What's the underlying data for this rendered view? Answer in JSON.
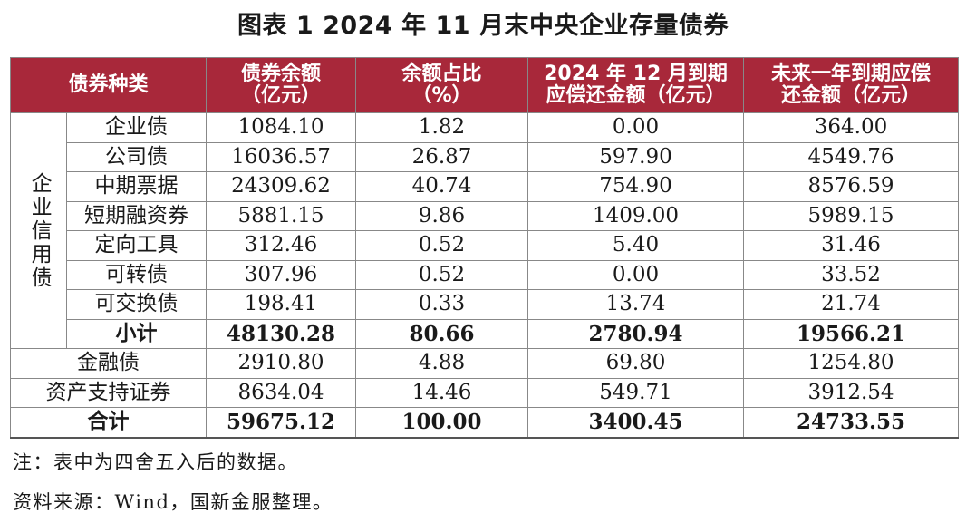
{
  "title": "图表 1  2024 年 11 月末中央企业存量债券",
  "headers": {
    "type": "债券种类",
    "balance_l1": "债券余额",
    "balance_l2": "（亿元）",
    "share_l1": "余额占比",
    "share_l2": "（%）",
    "dec_l1": "2024 年 12 月到期",
    "dec_l2": "应偿还金额（亿元）",
    "year_l1": "未来一年到期应偿",
    "year_l2": "还金额（亿元）"
  },
  "group_label": "企业信用债",
  "credit_rows": [
    {
      "name": "企业债",
      "balance": "1084.10",
      "share": "1.82",
      "dec": "0.00",
      "year": "364.00"
    },
    {
      "name": "公司债",
      "balance": "16036.57",
      "share": "26.87",
      "dec": "597.90",
      "year": "4549.76"
    },
    {
      "name": "中期票据",
      "balance": "24309.62",
      "share": "40.74",
      "dec": "754.90",
      "year": "8576.59"
    },
    {
      "name": "短期融资券",
      "balance": "5881.15",
      "share": "9.86",
      "dec": "1409.00",
      "year": "5989.15"
    },
    {
      "name": "定向工具",
      "balance": "312.46",
      "share": "0.52",
      "dec": "5.40",
      "year": "31.46"
    },
    {
      "name": "可转债",
      "balance": "307.96",
      "share": "0.52",
      "dec": "0.00",
      "year": "33.52"
    },
    {
      "name": "可交换债",
      "balance": "198.41",
      "share": "0.33",
      "dec": "13.74",
      "year": "21.74"
    }
  ],
  "subtotal": {
    "name": "小计",
    "balance": "48130.28",
    "share": "80.66",
    "dec": "2780.94",
    "year": "19566.21"
  },
  "other_rows": [
    {
      "name": "金融债",
      "balance": "2910.80",
      "share": "4.88",
      "dec": "69.80",
      "year": "1254.80"
    },
    {
      "name": "资产支持证券",
      "balance": "8634.04",
      "share": "14.46",
      "dec": "549.71",
      "year": "3912.54"
    }
  ],
  "total": {
    "name": "合计",
    "balance": "59675.12",
    "share": "100.00",
    "dec": "3400.45",
    "year": "24733.55"
  },
  "notes": {
    "note1": "注：表中为四舍五入后的数据。",
    "source": "资料来源：Wind，国新金服整理。"
  },
  "colors": {
    "header_bg": "#a8283a",
    "header_text": "#ffffff"
  }
}
